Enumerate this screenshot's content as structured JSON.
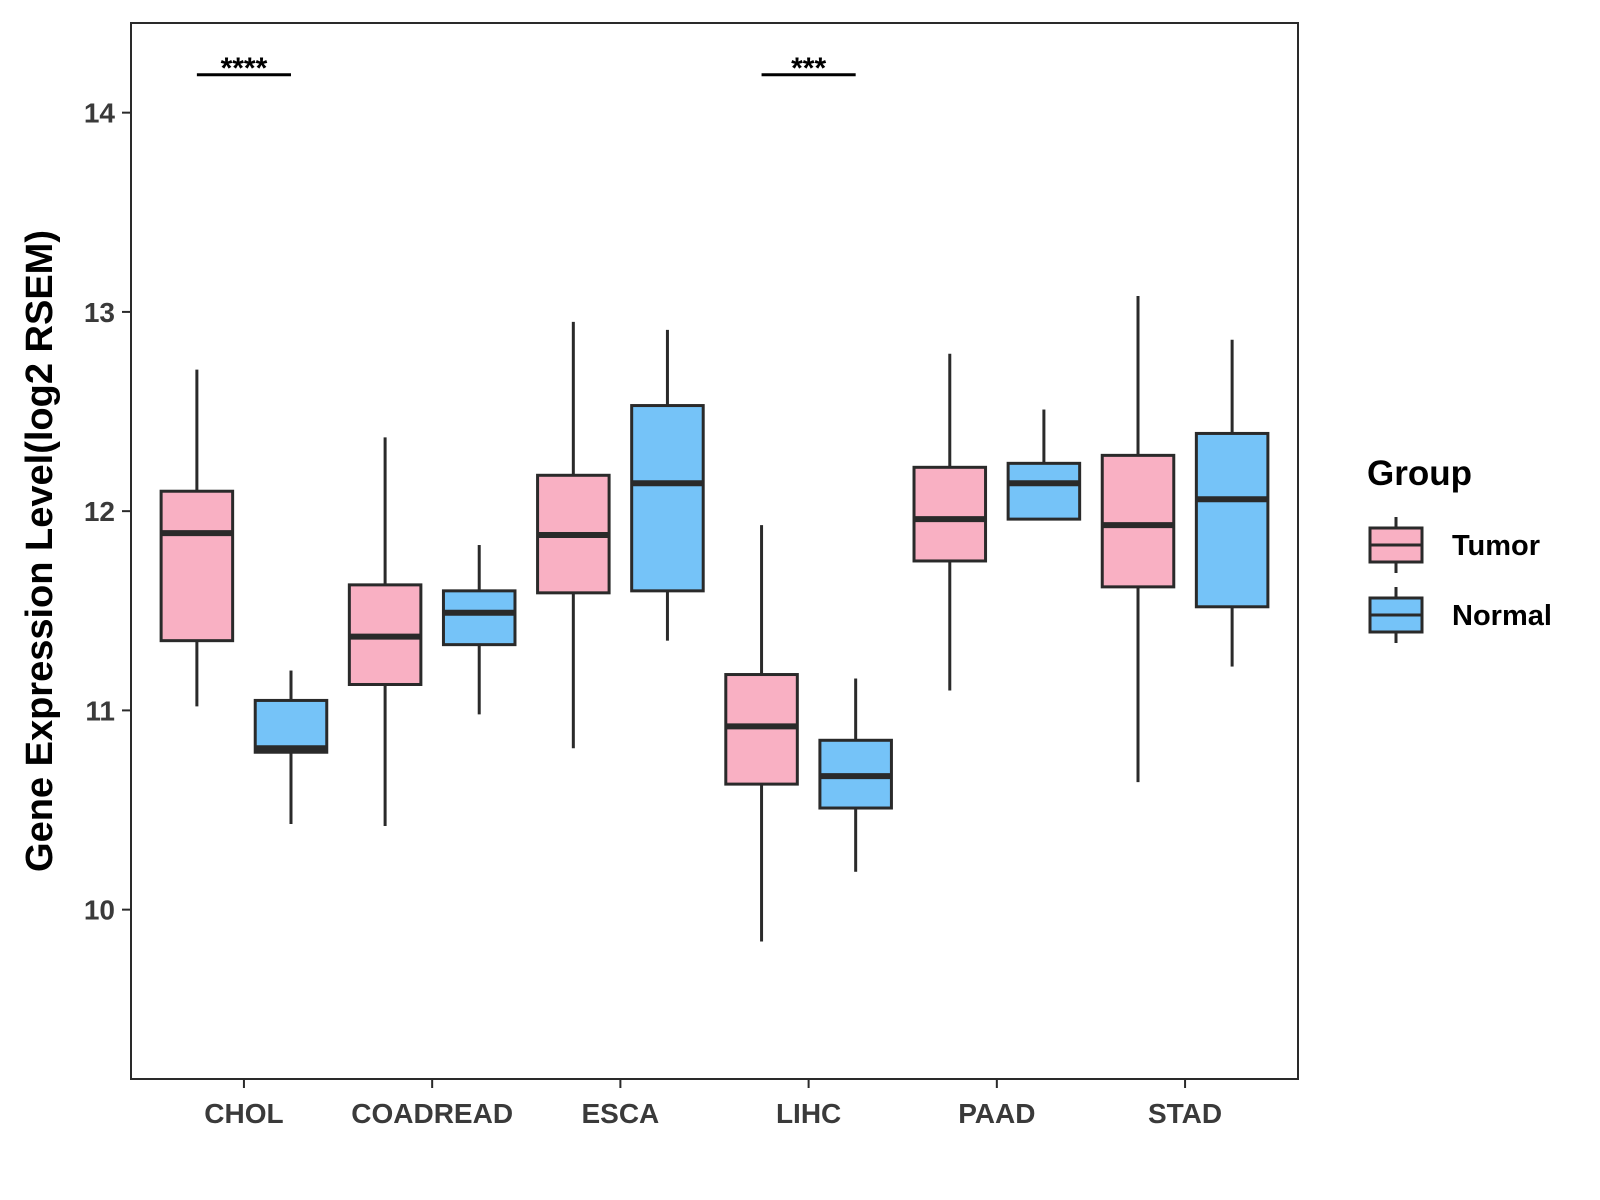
{
  "chart_data": {
    "type": "boxplot",
    "title": "",
    "xlabel": "",
    "ylabel": "Gene Expression Level(log2 RSEM)",
    "ylim": [
      9.15,
      14.45
    ],
    "yticks": [
      10,
      11,
      12,
      13,
      14
    ],
    "categories": [
      "CHOL",
      "COADREAD",
      "ESCA",
      "LIHC",
      "PAAD",
      "STAD"
    ],
    "legend": {
      "title": "Group",
      "position": "right"
    },
    "colors": {
      "Tumor": "#F9B0C3",
      "Normal": "#75C3F8",
      "outline": "#2a2a2a"
    },
    "series": [
      {
        "name": "Tumor",
        "boxes": [
          {
            "whisker_low": 11.02,
            "q1": 11.35,
            "median": 11.89,
            "q3": 12.1,
            "whisker_high": 12.71
          },
          {
            "whisker_low": 10.42,
            "q1": 11.13,
            "median": 11.37,
            "q3": 11.63,
            "whisker_high": 12.37
          },
          {
            "whisker_low": 10.81,
            "q1": 11.59,
            "median": 11.88,
            "q3": 12.18,
            "whisker_high": 12.95
          },
          {
            "whisker_low": 9.84,
            "q1": 10.63,
            "median": 10.92,
            "q3": 11.18,
            "whisker_high": 11.93
          },
          {
            "whisker_low": 11.1,
            "q1": 11.75,
            "median": 11.96,
            "q3": 12.22,
            "whisker_high": 12.79
          },
          {
            "whisker_low": 10.64,
            "q1": 11.62,
            "median": 11.93,
            "q3": 12.28,
            "whisker_high": 13.08
          }
        ]
      },
      {
        "name": "Normal",
        "boxes": [
          {
            "whisker_low": 10.43,
            "q1": 10.79,
            "median": 10.81,
            "q3": 11.05,
            "whisker_high": 11.2
          },
          {
            "whisker_low": 10.98,
            "q1": 11.33,
            "median": 11.49,
            "q3": 11.6,
            "whisker_high": 11.83
          },
          {
            "whisker_low": 11.35,
            "q1": 11.6,
            "median": 12.14,
            "q3": 12.53,
            "whisker_high": 12.91
          },
          {
            "whisker_low": 10.19,
            "q1": 10.51,
            "median": 10.67,
            "q3": 10.85,
            "whisker_high": 11.16
          },
          {
            "whisker_low": 11.96,
            "q1": 11.96,
            "median": 12.14,
            "q3": 12.24,
            "whisker_high": 12.51
          },
          {
            "whisker_low": 11.22,
            "q1": 11.52,
            "median": 12.06,
            "q3": 12.39,
            "whisker_high": 12.86
          }
        ]
      }
    ],
    "annotations": [
      {
        "category": "CHOL",
        "text": "****"
      },
      {
        "category": "CHOL",
        "text": ""
      },
      {
        "category": "LIHC",
        "text": "***"
      }
    ]
  }
}
